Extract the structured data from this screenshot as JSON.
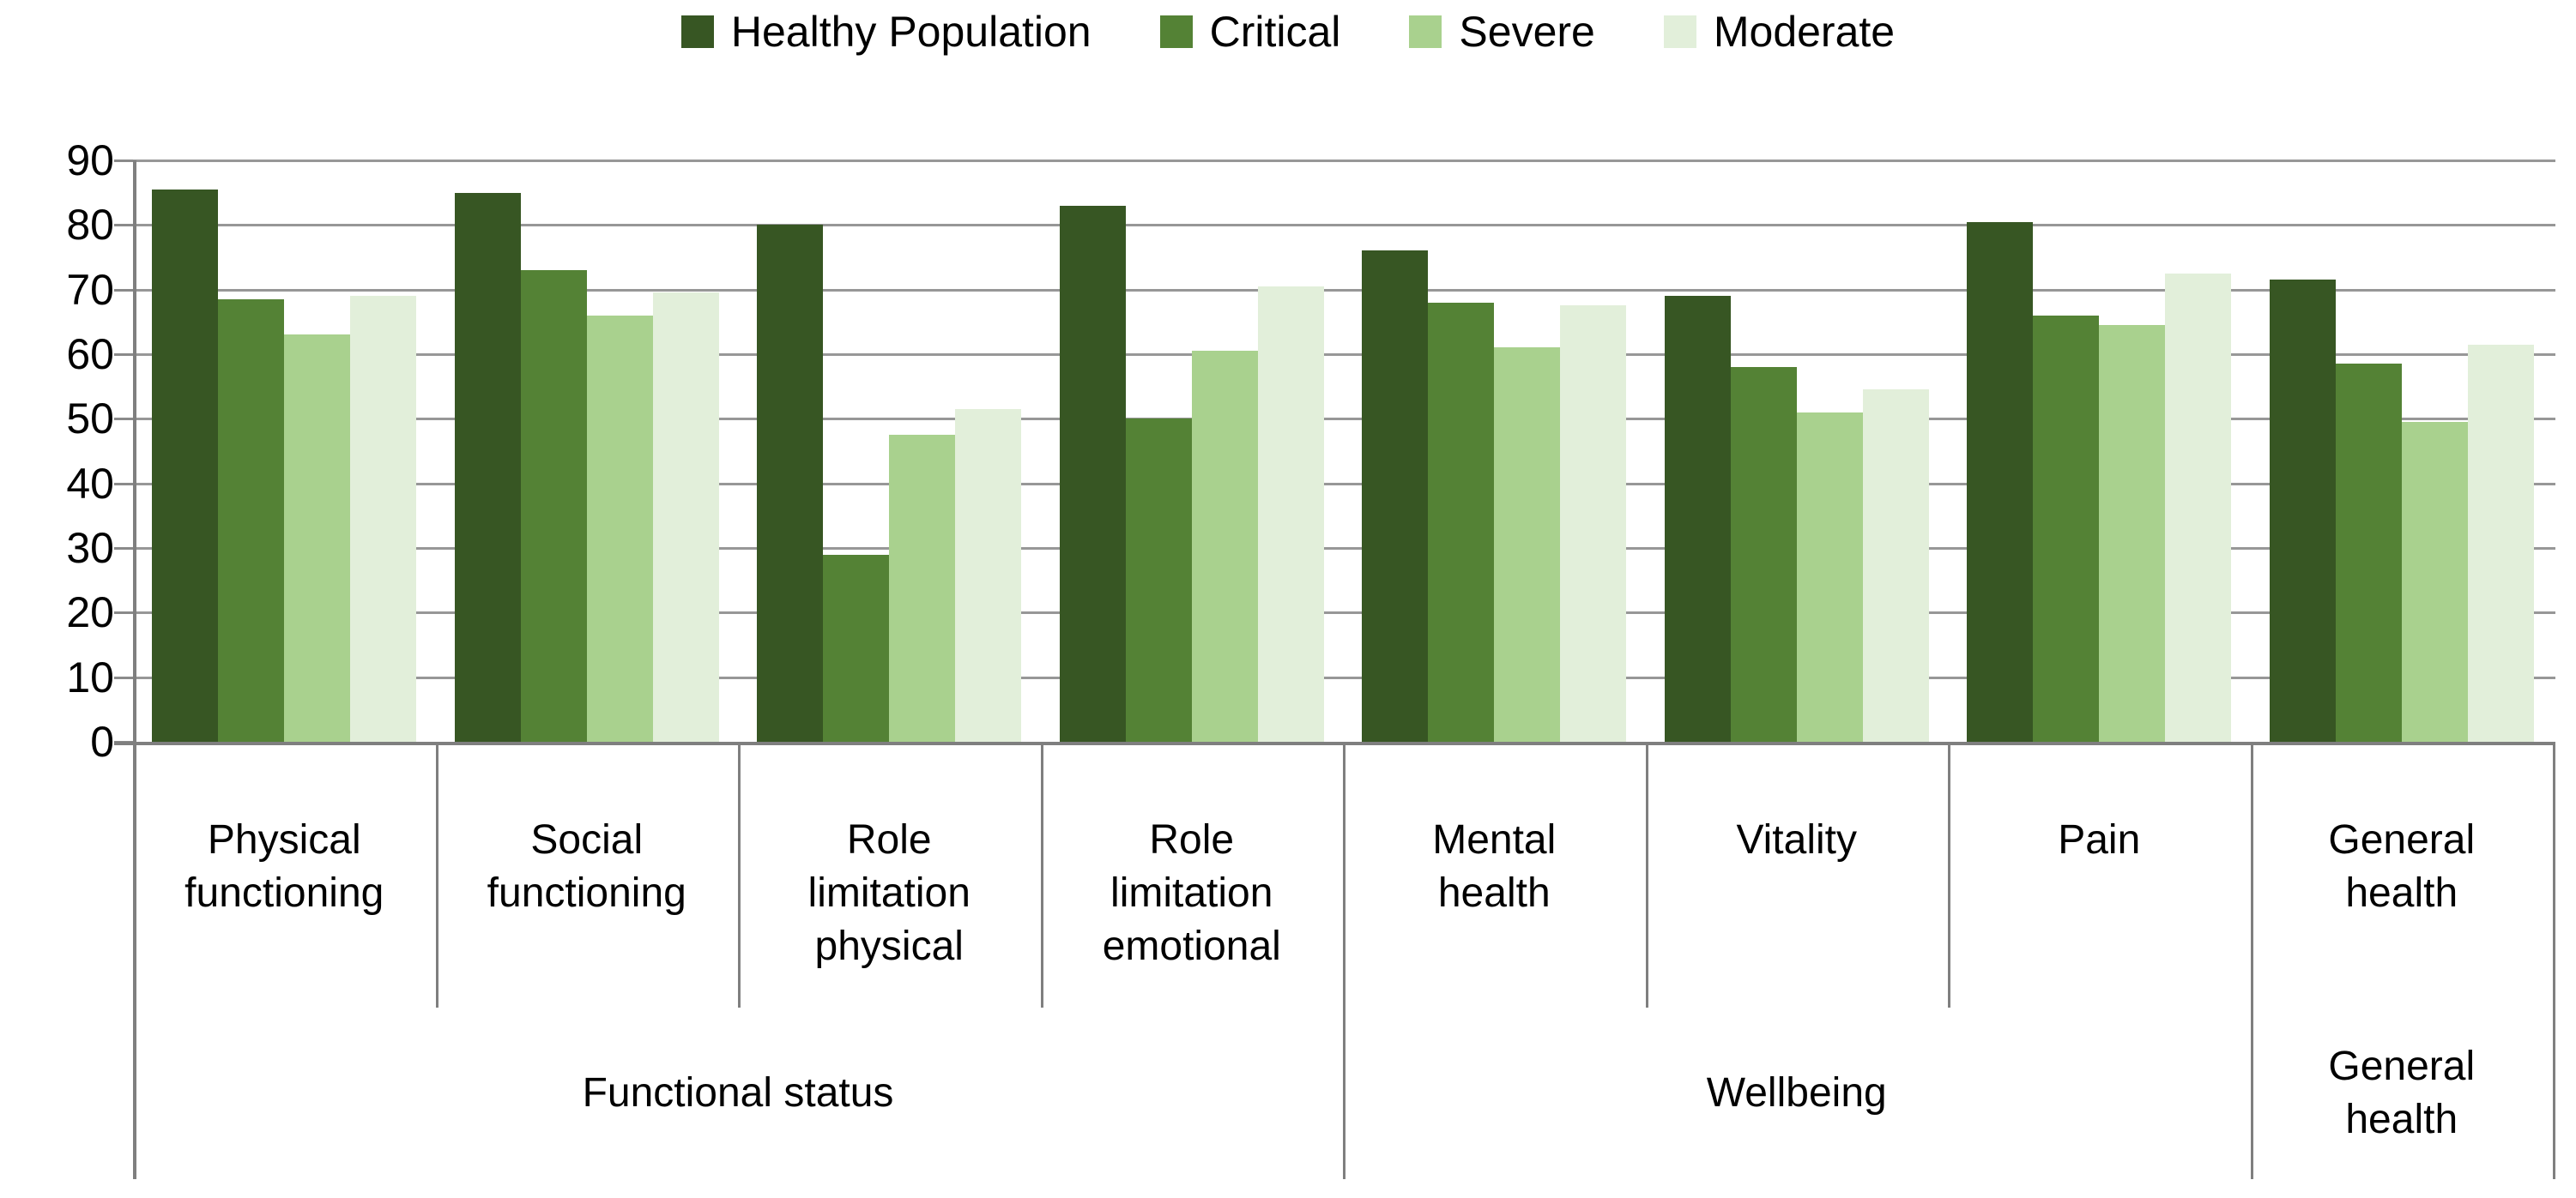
{
  "legend": {
    "items": [
      {
        "label": "Healthy Population",
        "color": "#375623"
      },
      {
        "label": "Critical",
        "color": "#548235"
      },
      {
        "label": "Severe",
        "color": "#A9D18E"
      },
      {
        "label": "Moderate",
        "color": "#E2EFDA"
      }
    ]
  },
  "y_axis": {
    "min": 0,
    "max": 90,
    "step": 10,
    "tick_labels": [
      "90",
      "80",
      "70",
      "60",
      "50",
      "40",
      "30",
      "20",
      "10",
      "0"
    ]
  },
  "x_axis": {
    "categories": [
      "Physical functioning",
      "Social functioning",
      "Role limitation physical",
      "Role limitation emotional",
      "Mental health",
      "Vitality",
      "Pain",
      "General health"
    ],
    "group_labels": [
      {
        "label": "Functional status",
        "span": 4
      },
      {
        "label": "Wellbeing",
        "span": 3
      },
      {
        "label": "General health",
        "span": 1
      }
    ]
  },
  "chart_data": {
    "type": "bar",
    "title": "",
    "categories": [
      "Physical functioning",
      "Social functioning",
      "Role limitation physical",
      "Role limitation emotional",
      "Mental health",
      "Vitality",
      "Pain",
      "General health"
    ],
    "category_groups": [
      {
        "label": "Functional status",
        "categories": [
          "Physical functioning",
          "Social functioning",
          "Role limitation physical",
          "Role limitation emotional"
        ]
      },
      {
        "label": "Wellbeing",
        "categories": [
          "Mental health",
          "Vitality",
          "Pain"
        ]
      },
      {
        "label": "General health",
        "categories": [
          "General health"
        ]
      }
    ],
    "series": [
      {
        "name": "Healthy Population",
        "color": "#375623",
        "values": [
          85.5,
          85,
          80,
          83,
          76,
          69,
          80.5,
          71.5
        ]
      },
      {
        "name": "Critical",
        "color": "#548235",
        "values": [
          68.5,
          73,
          29,
          50,
          68,
          58,
          66,
          58.5
        ]
      },
      {
        "name": "Severe",
        "color": "#A9D18E",
        "values": [
          63,
          66,
          47.5,
          60.5,
          61,
          51,
          64.5,
          49.5
        ]
      },
      {
        "name": "Moderate",
        "color": "#E2EFDA",
        "values": [
          69,
          69.5,
          51.5,
          70.5,
          67.5,
          54.5,
          72.5,
          61.5
        ]
      }
    ],
    "xlabel": "",
    "ylabel": "",
    "ylim": [
      0,
      90
    ],
    "grid": true,
    "legend_position": "top"
  },
  "colors": {
    "gridline": "#979797",
    "axis_line": "#7f7f7f",
    "text": "#000000",
    "background": "#ffffff"
  }
}
